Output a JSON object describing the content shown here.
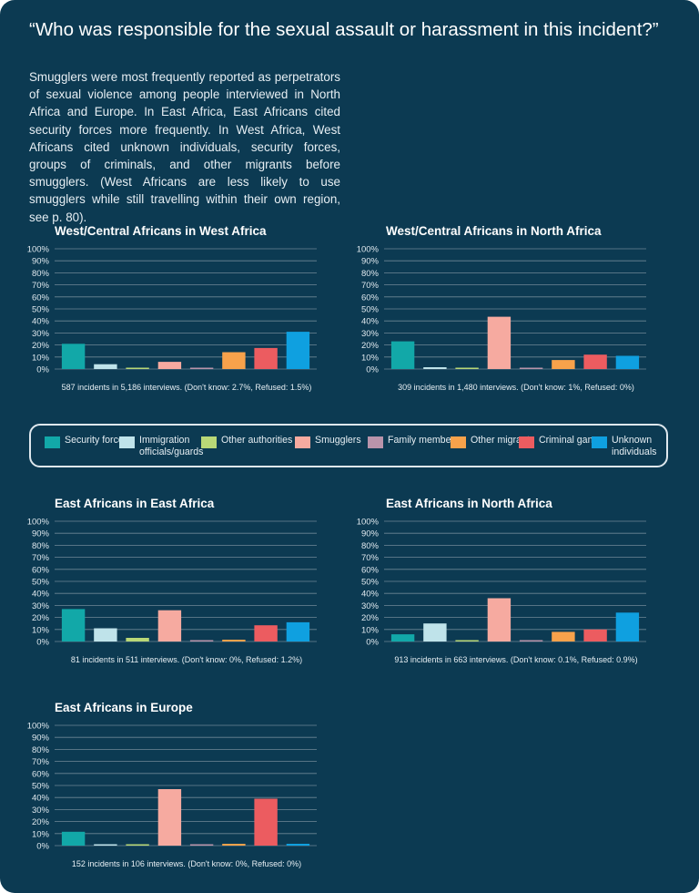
{
  "page": {
    "title": "“Who was responsible for the sexual assault or harassment in this incident?”",
    "intro": "Smugglers were most frequently reported as perpetrators of sexual violence among people interviewed in North Africa and Europe. In East Africa, East Africans cited security forces more frequently. In West Africa, West Africans cited unknown individuals, security forces, groups of criminals, and other migrants before smugglers. (West Africans are less likely to use smugglers while still travelling within their own region, see p. 80)."
  },
  "legend": {
    "items": [
      {
        "label": "Security forces",
        "color": "#12a8a8"
      },
      {
        "label": "Immigration officials/guards",
        "color": "#bfe3ea"
      },
      {
        "label": "Other authorities",
        "color": "#b9d877"
      },
      {
        "label": "Smugglers",
        "color": "#f6aaa0"
      },
      {
        "label": "Family members",
        "color": "#b994ab"
      },
      {
        "label": "Other migrants",
        "color": "#f7a24b"
      },
      {
        "label": "Criminal gangs",
        "color": "#ec5c60"
      },
      {
        "label": "Unknown individuals",
        "color": "#0fa0e0"
      }
    ]
  },
  "chart_data": [
    {
      "type": "bar",
      "title": "West/Central Africans in West Africa",
      "categories": [
        "Security forces",
        "Immigration officials/guards",
        "Other authorities",
        "Smugglers",
        "Family members",
        "Other migrants",
        "Criminal gangs",
        "Unknown individuals"
      ],
      "values": [
        21,
        4,
        0.5,
        6,
        1,
        14,
        17.5,
        31
      ],
      "ylim": [
        0,
        100
      ],
      "yticks": [
        "0%",
        "10%",
        "20%",
        "30%",
        "40%",
        "50%",
        "60%",
        "70%",
        "80%",
        "90%",
        "100%"
      ],
      "grid": true,
      "caption": "587 incidents in 5,186 interviews. (Don't know: 2.7%,  Refused: 1.5%)"
    },
    {
      "type": "bar",
      "title": "West/Central Africans in North Africa",
      "categories": [
        "Security forces",
        "Immigration officials/guards",
        "Other authorities",
        "Smugglers",
        "Family members",
        "Other migrants",
        "Criminal gangs",
        "Unknown individuals"
      ],
      "values": [
        23,
        1.5,
        0.5,
        43.5,
        0.2,
        7.5,
        12,
        11
      ],
      "ylim": [
        0,
        100
      ],
      "yticks": [
        "0%",
        "10%",
        "20%",
        "30%",
        "40%",
        "50%",
        "60%",
        "70%",
        "80%",
        "90%",
        "100%"
      ],
      "grid": true,
      "caption": "309 incidents in 1,480 interviews. (Don't know: 1%,  Refused: 0%)"
    },
    {
      "type": "bar",
      "title": "East Africans in East Africa",
      "categories": [
        "Security forces",
        "Immigration officials/guards",
        "Other authorities",
        "Smugglers",
        "Family members",
        "Other migrants",
        "Criminal gangs",
        "Unknown individuals"
      ],
      "values": [
        27,
        11,
        3,
        26,
        1,
        1.5,
        13.5,
        16
      ],
      "ylim": [
        0,
        100
      ],
      "yticks": [
        "0%",
        "10%",
        "20%",
        "30%",
        "40%",
        "50%",
        "60%",
        "70%",
        "80%",
        "90%",
        "100%"
      ],
      "grid": true,
      "caption": "81 incidents in 511 interviews. (Don't know: 0%,  Refused: 1.2%)"
    },
    {
      "type": "bar",
      "title": "East Africans in North Africa",
      "categories": [
        "Security forces",
        "Immigration officials/guards",
        "Other authorities",
        "Smugglers",
        "Family members",
        "Other migrants",
        "Criminal gangs",
        "Unknown individuals"
      ],
      "values": [
        6,
        15,
        0.5,
        36,
        0.5,
        8,
        10,
        24
      ],
      "ylim": [
        0,
        100
      ],
      "yticks": [
        "0%",
        "10%",
        "20%",
        "30%",
        "40%",
        "50%",
        "60%",
        "70%",
        "80%",
        "90%",
        "100%"
      ],
      "grid": true,
      "caption": "913 incidents in 663 interviews. (Don't know: 0.1%,  Refused: 0.9%)"
    },
    {
      "type": "bar",
      "title": "East Africans in Europe",
      "categories": [
        "Security forces",
        "Immigration officials/guards",
        "Other authorities",
        "Smugglers",
        "Family members",
        "Other migrants",
        "Criminal gangs",
        "Unknown individuals"
      ],
      "values": [
        11.5,
        1,
        0.3,
        47,
        0.3,
        1.5,
        39,
        1.5
      ],
      "ylim": [
        0,
        100
      ],
      "yticks": [
        "0%",
        "10%",
        "20%",
        "30%",
        "40%",
        "50%",
        "60%",
        "70%",
        "80%",
        "90%",
        "100%"
      ],
      "grid": true,
      "caption": "152 incidents in 106 interviews. (Don't know: 0%,  Refused: 0%)"
    }
  ]
}
